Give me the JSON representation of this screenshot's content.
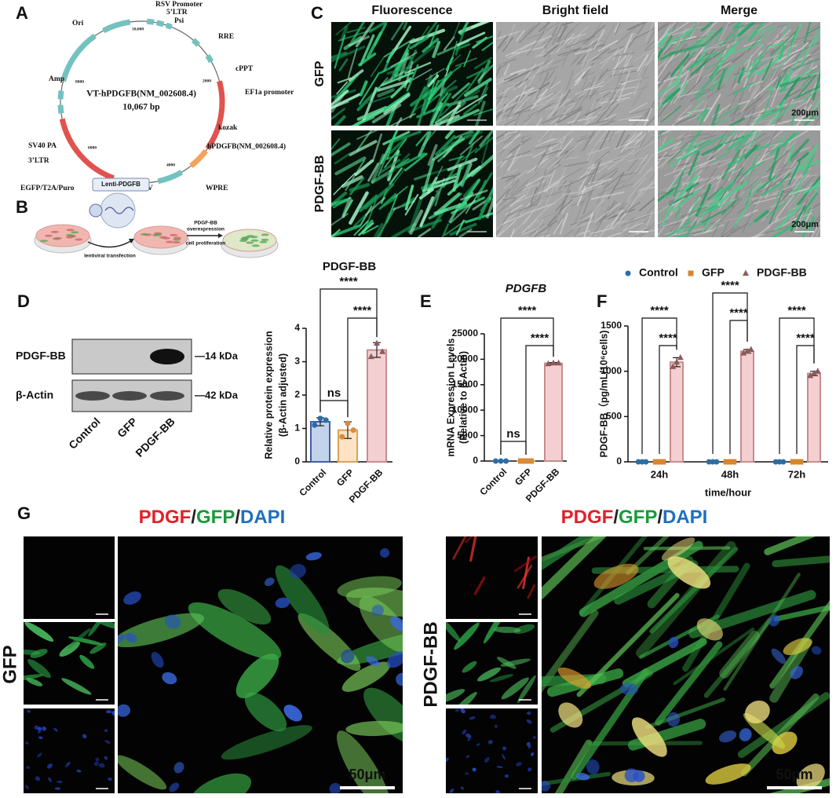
{
  "panel_labels": [
    "A",
    "B",
    "C",
    "D",
    "E",
    "F",
    "G"
  ],
  "plasmid": {
    "name": "VT-hPDGFB(NM_002608.4)",
    "size": "10,067 bp",
    "features": [
      "RSV Promoter",
      "5’LTR",
      "Psi",
      "Ori",
      "RRE",
      "cPPT",
      "Amp",
      "EF1a promoter",
      "kozak",
      "SV40 PA",
      "hPDGFB(NM_002608.4)",
      "3’LTR",
      "EGFP/T2A/Puro",
      "CMV",
      "WPRE"
    ],
    "ticks": [
      "10,000",
      "2000",
      "4000",
      "6000",
      "8000"
    ]
  },
  "workflow": {
    "vector": "Lenti-PDGFB",
    "step1": "lentiviral transfection",
    "step2": [
      "PDGF-BB",
      "overexpression"
    ],
    "step3": "cell proliferation"
  },
  "imaging": {
    "columns": [
      "Fluorescence",
      "Bright field",
      "Merge"
    ],
    "rows": [
      "GFP",
      "PDGF-BB"
    ],
    "scale": "200μm"
  },
  "western_blot": {
    "proteins": [
      "PDGF-BB",
      "β-Actin"
    ],
    "sizes": [
      "—14 kDa",
      "—42 kDa"
    ],
    "lanes": [
      "Control",
      "GFP",
      "PDGF-BB"
    ]
  },
  "chart_data": [
    {
      "type": "bar",
      "title": "PDGF-BB",
      "ylabel": [
        "Relative protein expression",
        "(β-Actin adjusted)"
      ],
      "categories": [
        "Control",
        "GFP",
        "PDGF-BB"
      ],
      "values": [
        1.2,
        0.95,
        3.35
      ],
      "errors": [
        0.12,
        0.25,
        0.22
      ],
      "points": [
        [
          1.1,
          1.3,
          1.25
        ],
        [
          0.75,
          1.15,
          0.95
        ],
        [
          3.15,
          3.55,
          3.3
        ]
      ],
      "markers": [
        "circle",
        "circle",
        "triangle"
      ],
      "colors": [
        "#c3d3ec",
        "#fde3c3",
        "#f4cfd2"
      ],
      "edgecolors": [
        "#3f5f9f",
        "#d9a256",
        "#c98c8c"
      ],
      "marker_colors": [
        "#2e6da4",
        "#d98a3a",
        "#8b5b5b"
      ],
      "ylim": [
        0,
        4
      ],
      "yticks": [
        0,
        1,
        2,
        3,
        4
      ],
      "significance": [
        "ns",
        "****",
        "****"
      ]
    },
    {
      "type": "bar",
      "title": "PDGFB",
      "ylabel": [
        "mRNA Expression Levels",
        "(Relative to β-Actin)"
      ],
      "categories": [
        "Control",
        "GFP",
        "PDGF-BB"
      ],
      "values": [
        1,
        1,
        19200
      ],
      "errors": [
        0,
        0,
        150
      ],
      "points": [
        [
          1,
          1,
          1
        ],
        [
          1,
          1,
          1
        ],
        [
          19100,
          19250,
          19250
        ]
      ],
      "markers": [
        "circle",
        "square",
        "triangle"
      ],
      "colors": [
        "#c3d3ec",
        "#fde3c3",
        "#f4cfd2"
      ],
      "edgecolors": [
        "#3f5f9f",
        "#d9a256",
        "#c98c8c"
      ],
      "marker_colors": [
        "#2e6da4",
        "#d98a3a",
        "#8b5b5b"
      ],
      "ylim": [
        0,
        25000
      ],
      "yticks": [
        0,
        5000,
        10000,
        15000,
        20000,
        25000
      ],
      "significance": [
        "ns",
        "****",
        "****"
      ]
    },
    {
      "type": "bar",
      "ylabel": "PDGF-BB（pg/mL/10⁶cells)",
      "xlabel": "time/hour",
      "categories": [
        "24h",
        "48h",
        "72h"
      ],
      "series": [
        {
          "name": "Control",
          "color": "#c3d3ec",
          "edgecolor": "#3f5f9f",
          "marker_color": "#2e6da4",
          "marker": "circle",
          "values": [
            0,
            0,
            0
          ],
          "errors": [
            0,
            0,
            0
          ],
          "points": [
            [
              0,
              0,
              0
            ],
            [
              0,
              0,
              0
            ],
            [
              0,
              0,
              0
            ]
          ]
        },
        {
          "name": "GFP",
          "color": "#fde3c3",
          "edgecolor": "#d9a256",
          "marker_color": "#d9852e",
          "marker": "square",
          "values": [
            0,
            0,
            0
          ],
          "errors": [
            0,
            0,
            0
          ],
          "points": [
            [
              0,
              0,
              0
            ],
            [
              0,
              0,
              0
            ],
            [
              0,
              0,
              0
            ]
          ]
        },
        {
          "name": "PDGF-BB",
          "color": "#f4cfd2",
          "edgecolor": "#c98c8c",
          "marker_color": "#8b5b5b",
          "marker": "triangle",
          "values": [
            1100,
            1220,
            975
          ],
          "errors": [
            50,
            20,
            25
          ],
          "points": [
            [
              1050,
              1100,
              1150
            ],
            [
              1200,
              1220,
              1240
            ],
            [
              950,
              975,
              1000
            ]
          ]
        }
      ],
      "ylim": [
        0,
        1500
      ],
      "yticks": [
        0,
        500,
        1000,
        1500
      ],
      "legend": "top",
      "significance": [
        "****",
        "****",
        "****",
        "****",
        "****",
        "****"
      ]
    }
  ],
  "staining": {
    "title": [
      "PDGF",
      "/",
      "GFP",
      "/",
      "DAPI"
    ],
    "title_colors": [
      "#e3202a",
      "#222222",
      "#1a9a3a",
      "#222222",
      "#1e6fc0"
    ],
    "groups": [
      "GFP",
      "PDGF-BB"
    ],
    "scale": "50μm"
  }
}
